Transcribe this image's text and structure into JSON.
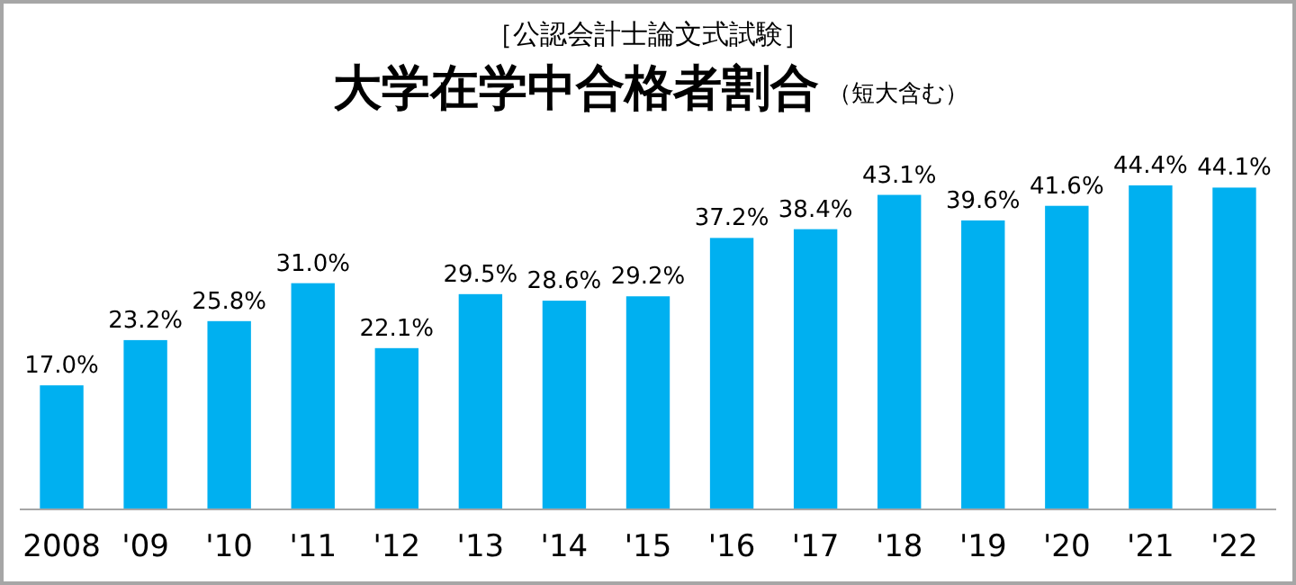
{
  "chart_data": {
    "type": "bar",
    "title": "大学在学中合格者割合",
    "subtitle": "［公認会計士論文式試験］",
    "annotations": [
      "（短大含む）"
    ],
    "categories": [
      "2008",
      "'09",
      "'10",
      "'11",
      "'12",
      "'13",
      "'14",
      "'15",
      "'16",
      "'17",
      "'18",
      "'19",
      "'20",
      "'21",
      "'22"
    ],
    "values": [
      17.0,
      23.2,
      25.8,
      31.0,
      22.1,
      29.5,
      28.6,
      29.2,
      37.2,
      38.4,
      43.1,
      39.6,
      41.6,
      44.4,
      44.1
    ],
    "value_labels": [
      "17.0%",
      "23.2%",
      "25.8%",
      "31.0%",
      "22.1%",
      "29.5%",
      "28.6%",
      "29.2%",
      "37.2%",
      "38.4%",
      "43.1%",
      "39.6%",
      "41.6%",
      "44.4%",
      "44.1%"
    ],
    "color": "#00b0f0"
  }
}
